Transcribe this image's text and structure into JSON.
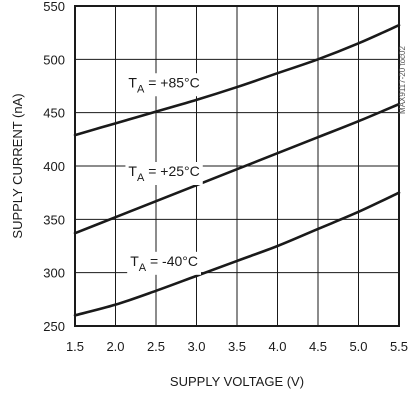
{
  "chart_data": {
    "type": "line",
    "title": "",
    "xlabel": "SUPPLY VOLTAGE (V)",
    "ylabel": "SUPPLY CURRENT (nA)",
    "xlim": [
      1.5,
      5.5
    ],
    "ylim": [
      250,
      550
    ],
    "grid": true,
    "x_ticks": [
      "1.5",
      "2.0",
      "2.5",
      "3.0",
      "3.5",
      "4.0",
      "4.5",
      "5.0",
      "5.5"
    ],
    "y_ticks": [
      "250",
      "300",
      "350",
      "400",
      "450",
      "500",
      "550"
    ],
    "x": [
      1.5,
      2.0,
      2.5,
      3.0,
      3.5,
      4.0,
      4.5,
      5.0,
      5.5
    ],
    "series": [
      {
        "name": "TA = +85°C",
        "label_main": "T",
        "label_sub": "A",
        "label_rest": " = +85°C",
        "values": [
          429,
          440,
          451,
          462,
          474,
          487,
          500,
          515,
          532
        ]
      },
      {
        "name": "TA = +25°C",
        "label_main": "T",
        "label_sub": "A",
        "label_rest": " = +25°C",
        "values": [
          337,
          352,
          367,
          382,
          397,
          412,
          427,
          442,
          458
        ]
      },
      {
        "name": "TA = -40°C",
        "label_main": "T",
        "label_sub": "A",
        "label_rest": " = -40°C",
        "values": [
          260,
          270,
          283,
          297,
          311,
          325,
          341,
          357,
          375
        ]
      }
    ],
    "watermark": "MAX9117-20 toc02",
    "colors": {
      "line": "#1a1a1a",
      "grid": "#1a1a1a",
      "background": "#ffffff"
    }
  }
}
